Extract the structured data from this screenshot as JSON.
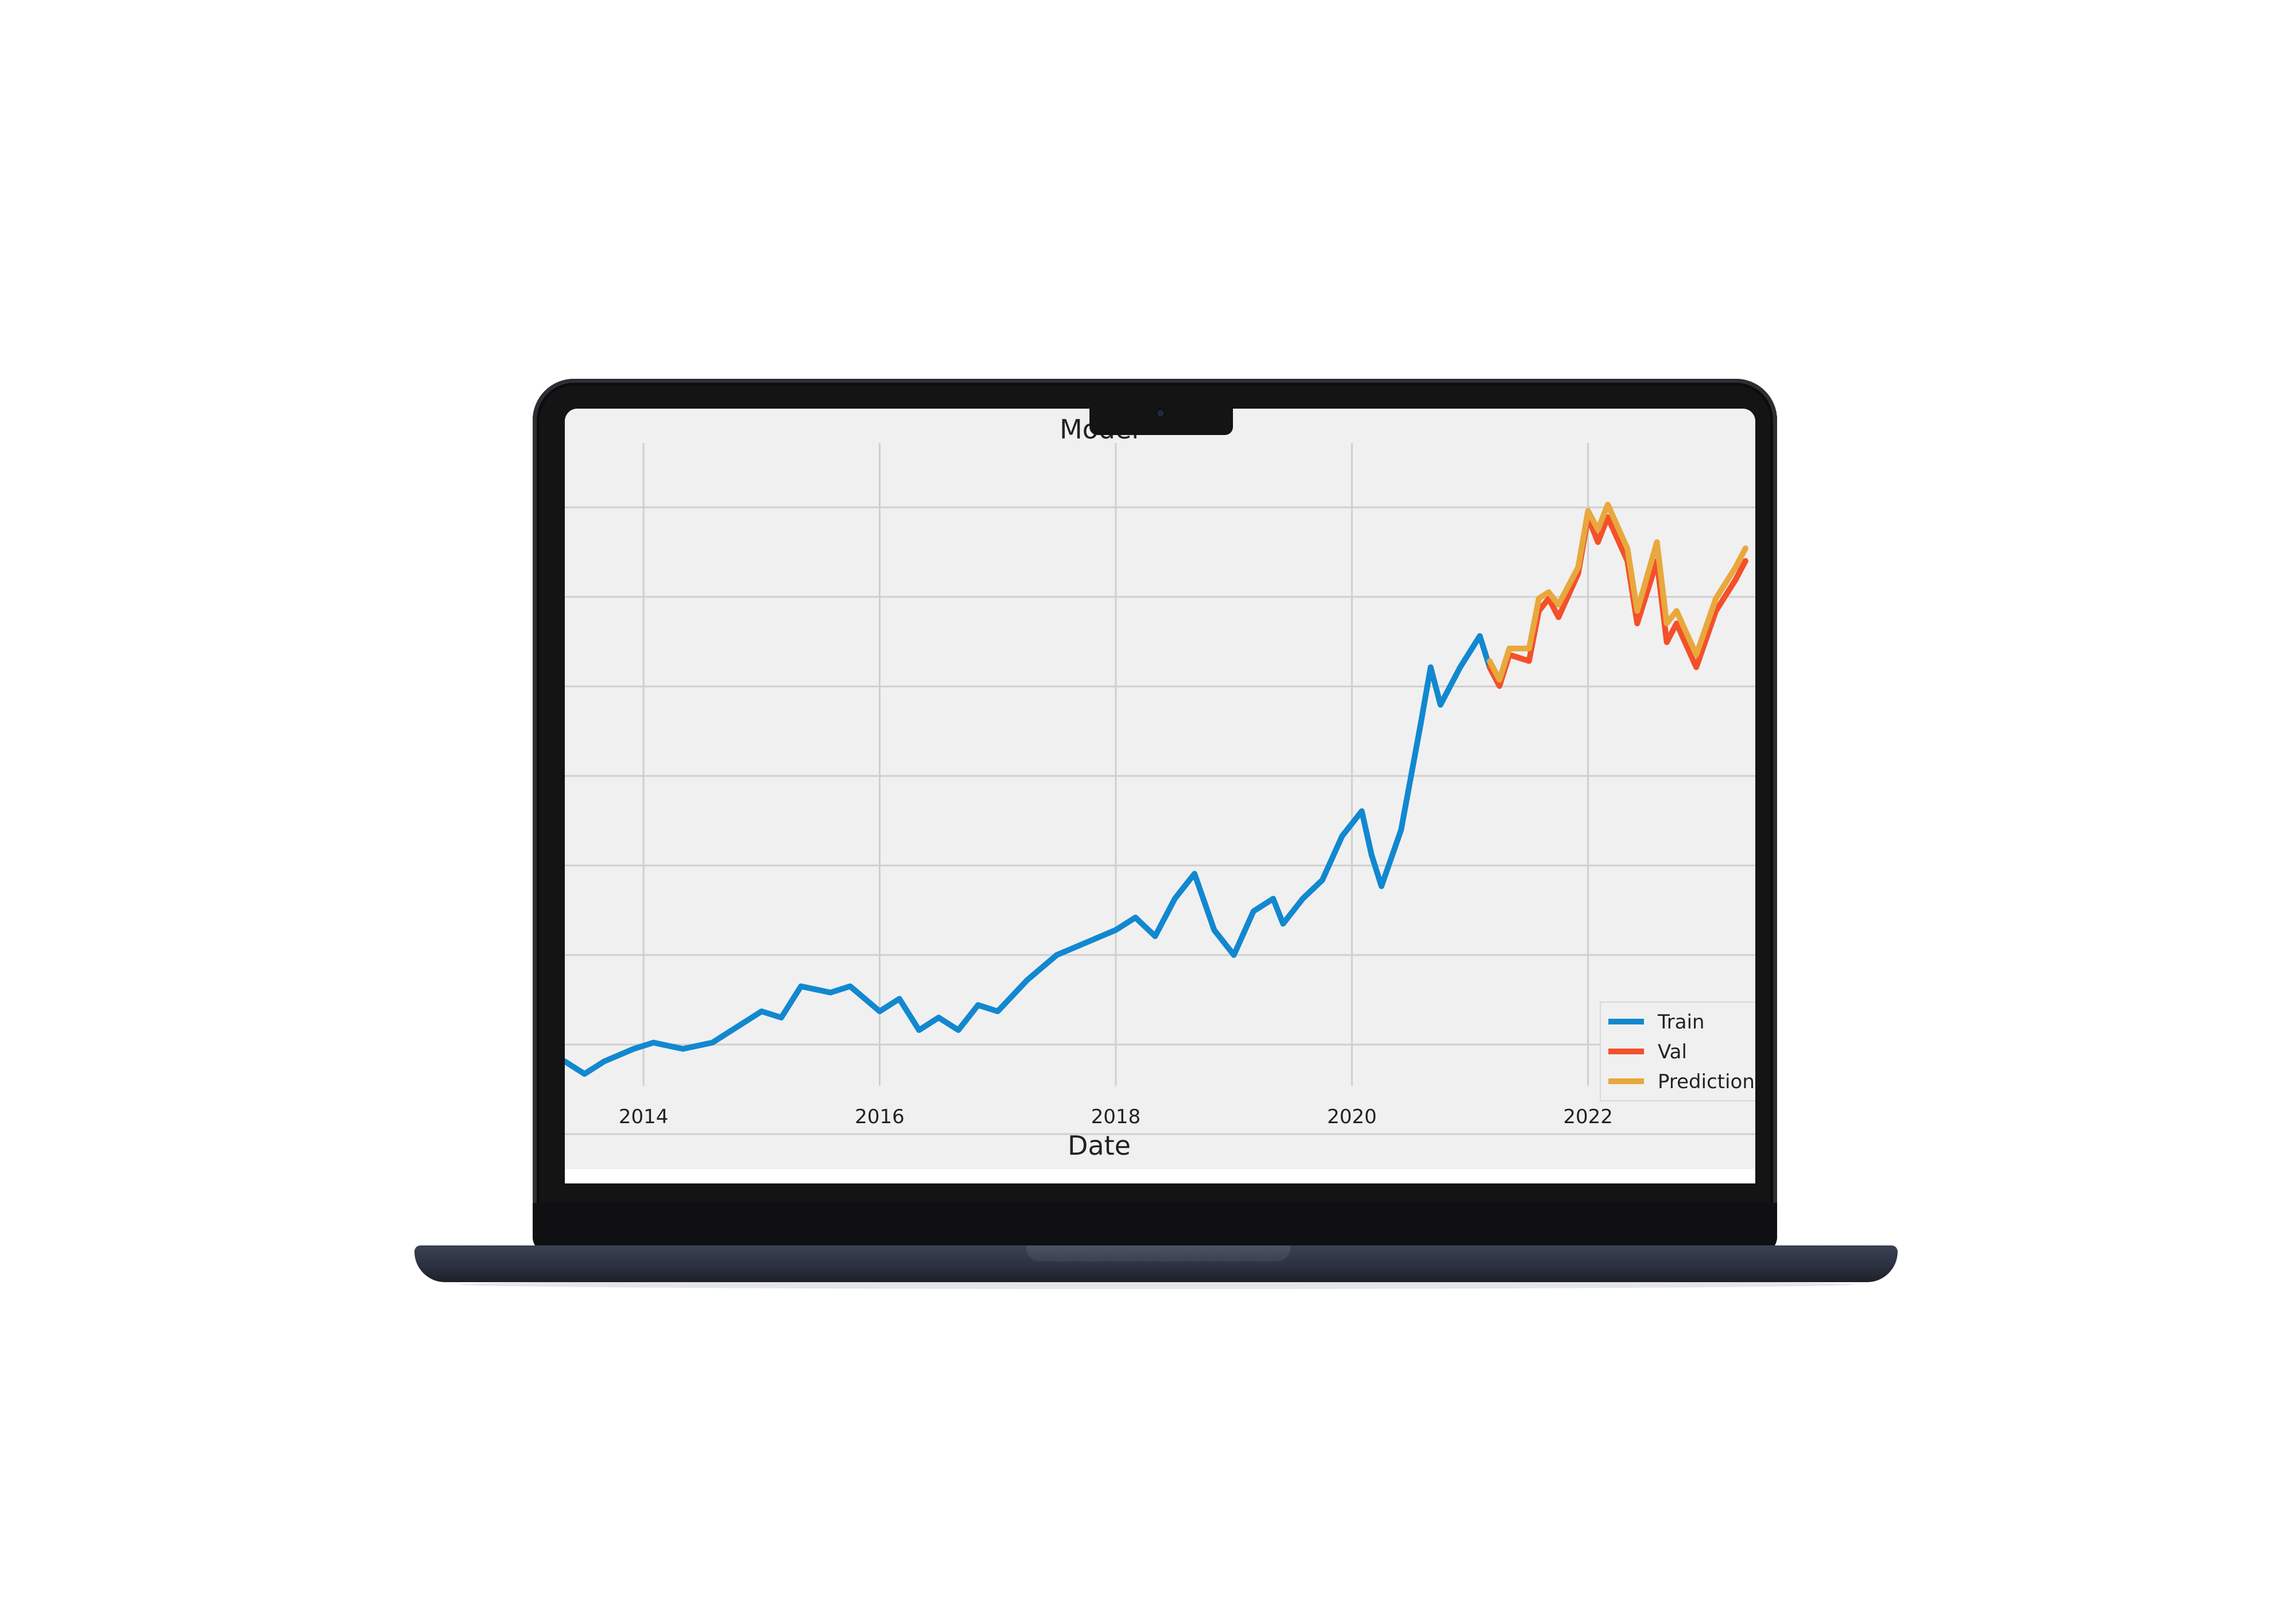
{
  "chart_data": {
    "type": "line",
    "title": "Model",
    "xlabel": "Date",
    "ylabel": "",
    "x_ticks": [
      "2014",
      "2016",
      "2018",
      "2020",
      "2022"
    ],
    "x_range": [
      "2013-05",
      "2023-06"
    ],
    "y_range": [
      0,
      100
    ],
    "y_ticks_shown": false,
    "grid": true,
    "legend_position": "lower-right",
    "series": [
      {
        "name": "Train",
        "color": "#1288d0",
        "points": [
          [
            "2013-05",
            3
          ],
          [
            "2013-07",
            1
          ],
          [
            "2013-09",
            3
          ],
          [
            "2013-12",
            5
          ],
          [
            "2014-02",
            6
          ],
          [
            "2014-05",
            5
          ],
          [
            "2014-08",
            6
          ],
          [
            "2014-10",
            8
          ],
          [
            "2015-01",
            11
          ],
          [
            "2015-03",
            10
          ],
          [
            "2015-05",
            15
          ],
          [
            "2015-08",
            14
          ],
          [
            "2015-10",
            15
          ],
          [
            "2016-01",
            11
          ],
          [
            "2016-03",
            13
          ],
          [
            "2016-05",
            8
          ],
          [
            "2016-07",
            10
          ],
          [
            "2016-09",
            8
          ],
          [
            "2016-11",
            12
          ],
          [
            "2017-01",
            11
          ],
          [
            "2017-04",
            16
          ],
          [
            "2017-07",
            20
          ],
          [
            "2017-10",
            22
          ],
          [
            "2018-01",
            24
          ],
          [
            "2018-03",
            26
          ],
          [
            "2018-05",
            23
          ],
          [
            "2018-07",
            29
          ],
          [
            "2018-09",
            33
          ],
          [
            "2018-11",
            24
          ],
          [
            "2019-01",
            20
          ],
          [
            "2019-03",
            27
          ],
          [
            "2019-05",
            29
          ],
          [
            "2019-06",
            25
          ],
          [
            "2019-08",
            29
          ],
          [
            "2019-10",
            32
          ],
          [
            "2019-12",
            39
          ],
          [
            "2020-02",
            43
          ],
          [
            "2020-03",
            36
          ],
          [
            "2020-04",
            31
          ],
          [
            "2020-06",
            40
          ],
          [
            "2020-08",
            57
          ],
          [
            "2020-09",
            66
          ],
          [
            "2020-10",
            60
          ],
          [
            "2020-12",
            66
          ],
          [
            "2021-02",
            71
          ],
          [
            "2021-03",
            66
          ]
        ]
      },
      {
        "name": "Val",
        "color": "#f4502a",
        "points": [
          [
            "2021-03",
            66
          ],
          [
            "2021-04",
            63
          ],
          [
            "2021-05",
            68
          ],
          [
            "2021-07",
            67
          ],
          [
            "2021-08",
            75
          ],
          [
            "2021-09",
            77
          ],
          [
            "2021-10",
            74
          ],
          [
            "2021-12",
            81
          ],
          [
            "2022-01",
            90
          ],
          [
            "2022-02",
            86
          ],
          [
            "2022-03",
            90
          ],
          [
            "2022-05",
            83
          ],
          [
            "2022-06",
            73
          ],
          [
            "2022-08",
            83
          ],
          [
            "2022-09",
            70
          ],
          [
            "2022-10",
            73
          ],
          [
            "2022-12",
            66
          ],
          [
            "2023-02",
            75
          ],
          [
            "2023-04",
            80
          ],
          [
            "2023-05",
            83
          ]
        ]
      },
      {
        "name": "Predictions",
        "color": "#e8a83c",
        "points": [
          [
            "2021-03",
            67
          ],
          [
            "2021-04",
            64
          ],
          [
            "2021-05",
            69
          ],
          [
            "2021-07",
            69
          ],
          [
            "2021-08",
            77
          ],
          [
            "2021-09",
            78
          ],
          [
            "2021-10",
            76
          ],
          [
            "2021-12",
            82
          ],
          [
            "2022-01",
            91
          ],
          [
            "2022-02",
            88
          ],
          [
            "2022-03",
            92
          ],
          [
            "2022-05",
            85
          ],
          [
            "2022-06",
            75
          ],
          [
            "2022-08",
            86
          ],
          [
            "2022-09",
            73
          ],
          [
            "2022-10",
            75
          ],
          [
            "2022-12",
            68
          ],
          [
            "2023-02",
            77
          ],
          [
            "2023-04",
            82
          ],
          [
            "2023-05",
            85
          ]
        ]
      }
    ]
  },
  "colors": {
    "plot_background": "#f0f0f0",
    "gridline": "#cfcfcf",
    "laptop_body": "#141414",
    "laptop_base": "#2b3140"
  }
}
